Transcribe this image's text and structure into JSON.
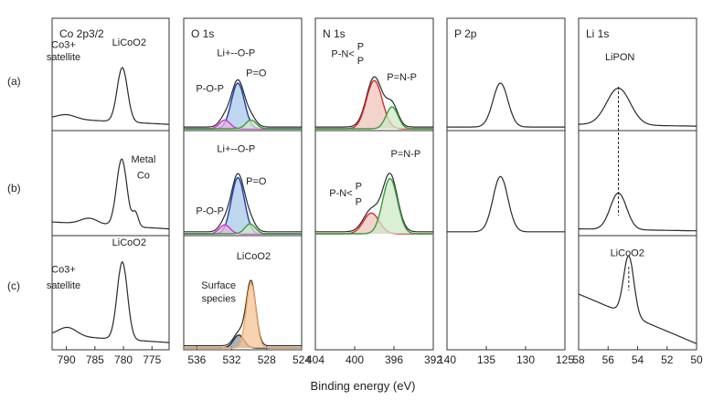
{
  "figure": {
    "xlabel": "Binding energy (eV)",
    "row_labels": [
      "(a)",
      "(b)",
      "(c)"
    ]
  },
  "colors": {
    "line": "#2a2a2a",
    "red": "#d92b2b",
    "green": "#3a9a3a",
    "blue": "#1f3aa8",
    "magenta": "#cc33cc",
    "orange": "#f0a860",
    "gray_fill": "#8a9aa8",
    "red_fill": "#f2c4bc",
    "green_fill": "#cfe8c8",
    "blue_fill": "#a8c8e8",
    "magenta_fill": "#e9b3e6",
    "orange_fill": "#f5c497"
  },
  "chart_data": [
    {
      "type": "line",
      "title": "Co 2p3/2",
      "xlim": [
        792.5,
        772
      ],
      "xticks": [
        790,
        785,
        780,
        775
      ],
      "panels": [
        {
          "row": "a",
          "curves": [
            {
              "name": "total",
              "peaks": [
                {
                  "center": 780.2,
                  "height": 0.62,
                  "width": 0.9
                },
                {
                  "center": 790.0,
                  "height": 0.05,
                  "width": 1.6
                }
              ],
              "baseline": [
                0.12,
                0.05
              ]
            }
          ],
          "annotations": [
            {
              "text": "LiCoO2",
              "x": 779,
              "y": 0.95
            },
            {
              "text": "Co3+",
              "x": 790.5,
              "y": 0.92
            },
            {
              "text": "satellite",
              "x": 790.5,
              "y": 0.78
            }
          ]
        },
        {
          "row": "b",
          "curves": [
            {
              "name": "total",
              "peaks": [
                {
                  "center": 780.3,
                  "height": 0.68,
                  "width": 0.9
                },
                {
                  "center": 777.9,
                  "height": 0.14,
                  "width": 0.5
                },
                {
                  "center": 786.0,
                  "height": 0.06,
                  "width": 1.5
                }
              ],
              "baseline": [
                0.12,
                0.05
              ]
            }
          ],
          "annotations": [
            {
              "text": "Metal",
              "x": 776.5,
              "y": 0.72
            },
            {
              "text": "Co",
              "x": 776.5,
              "y": 0.56
            }
          ]
        },
        {
          "row": "c",
          "curves": [
            {
              "name": "total",
              "peaks": [
                {
                  "center": 780.2,
                  "height": 0.72,
                  "width": 0.9
                },
                {
                  "center": 789.8,
                  "height": 0.08,
                  "width": 1.6
                }
              ],
              "baseline": [
                0.12,
                0.05
              ]
            }
          ],
          "annotations": [
            {
              "text": "LiCoO2",
              "x": 779,
              "y": 0.95
            },
            {
              "text": "Co3+",
              "x": 790.5,
              "y": 0.7
            },
            {
              "text": "satellite",
              "x": 790.5,
              "y": 0.55
            }
          ]
        }
      ]
    },
    {
      "type": "line",
      "title": "O 1s",
      "xlim": [
        537.5,
        524
      ],
      "xticks": [
        536,
        532,
        528,
        524
      ],
      "panels": [
        {
          "row": "a",
          "curves": [
            {
              "name": "total",
              "peaks": [
                {
                  "center": 531.3,
                  "height": 0.53,
                  "width": 0.75
                },
                {
                  "center": 532.8,
                  "height": 0.1,
                  "width": 0.6
                },
                {
                  "center": 529.8,
                  "height": 0.1,
                  "width": 0.6
                }
              ],
              "baseline": [
                0.02,
                0.02
              ]
            },
            {
              "name": "Li+--O-P",
              "color": "blue",
              "fill": "blue_fill",
              "peaks": [
                {
                  "center": 531.3,
                  "height": 0.52,
                  "width": 0.75
                }
              ]
            },
            {
              "name": "P-O-P",
              "color": "magenta",
              "fill": "magenta_fill",
              "peaks": [
                {
                  "center": 532.8,
                  "height": 0.1,
                  "width": 0.6
                }
              ]
            },
            {
              "name": "P=O",
              "color": "green",
              "fill": "green_fill",
              "peaks": [
                {
                  "center": 529.8,
                  "height": 0.1,
                  "width": 0.6
                }
              ]
            }
          ],
          "annotations": [
            {
              "text": "Li+--O-P",
              "x": 531.5,
              "y": 0.83
            },
            {
              "text": "P-O-P",
              "x": 534.5,
              "y": 0.42
            },
            {
              "text": "P=O",
              "x": 529.2,
              "y": 0.6
            }
          ]
        },
        {
          "row": "b",
          "curves": [
            {
              "name": "total",
              "peaks": [
                {
                  "center": 531.3,
                  "height": 0.58,
                  "width": 0.75
                },
                {
                  "center": 532.8,
                  "height": 0.09,
                  "width": 0.6
                },
                {
                  "center": 529.9,
                  "height": 0.1,
                  "width": 0.6
                }
              ],
              "baseline": [
                0.02,
                0.02
              ]
            },
            {
              "name": "Li+--O-P",
              "color": "blue",
              "fill": "blue_fill",
              "peaks": [
                {
                  "center": 531.3,
                  "height": 0.57,
                  "width": 0.75
                }
              ]
            },
            {
              "name": "P-O-P",
              "color": "magenta",
              "fill": "magenta_fill",
              "peaks": [
                {
                  "center": 532.8,
                  "height": 0.09,
                  "width": 0.6
                }
              ]
            },
            {
              "name": "P=O",
              "color": "green",
              "fill": "green_fill",
              "peaks": [
                {
                  "center": 529.9,
                  "height": 0.1,
                  "width": 0.6
                }
              ]
            }
          ],
          "annotations": [
            {
              "text": "Li+--O-P",
              "x": 531.5,
              "y": 0.83
            },
            {
              "text": "P-O-P",
              "x": 534.5,
              "y": 0.2
            },
            {
              "text": "P=O",
              "x": 529.2,
              "y": 0.5
            }
          ]
        },
        {
          "row": "c",
          "curves": [
            {
              "name": "total",
              "peaks": [
                {
                  "center": 529.8,
                  "height": 0.6,
                  "width": 0.55
                },
                {
                  "center": 531.2,
                  "height": 0.12,
                  "width": 0.6
                }
              ],
              "baseline": [
                0.02,
                0.02
              ]
            },
            {
              "name": "Surface species",
              "color": "line",
              "fill": "gray_fill",
              "peaks": [
                {
                  "center": 531.2,
                  "height": 0.12,
                  "width": 0.6
                }
              ]
            },
            {
              "name": "LiCoO2",
              "color": "orange",
              "fill": "orange_fill",
              "peaks": [
                {
                  "center": 529.8,
                  "height": 0.6,
                  "width": 0.55
                }
              ]
            }
          ],
          "annotations": [
            {
              "text": "LiCoO2",
              "x": 529.5,
              "y": 0.82
            },
            {
              "text": "Surface",
              "x": 533.5,
              "y": 0.55
            },
            {
              "text": "species",
              "x": 533.5,
              "y": 0.43
            }
          ]
        }
      ]
    },
    {
      "type": "line",
      "title": "N 1s",
      "xlim": [
        404,
        392
      ],
      "xticks": [
        404,
        400,
        396,
        392
      ],
      "panels": [
        {
          "row": "a",
          "curves": [
            {
              "name": "total",
              "peaks": [
                {
                  "center": 398.0,
                  "height": 0.57,
                  "width": 0.8
                },
                {
                  "center": 396.2,
                  "height": 0.25,
                  "width": 0.6
                }
              ],
              "baseline": [
                0.02,
                0.02
              ]
            },
            {
              "name": "P-N<P P",
              "color": "red",
              "fill": "red_fill",
              "peaks": [
                {
                  "center": 398.0,
                  "height": 0.55,
                  "width": 0.8
                }
              ]
            },
            {
              "name": "P=N-P",
              "color": "green",
              "fill": "green_fill",
              "peaks": [
                {
                  "center": 396.2,
                  "height": 0.25,
                  "width": 0.6
                }
              ]
            }
          ],
          "annotations": [
            {
              "text": "P-N<",
              "x": 401.2,
              "y": 0.82
            },
            {
              "text": "P",
              "x": 399.4,
              "y": 0.9
            },
            {
              "text": "P",
              "x": 399.4,
              "y": 0.74
            },
            {
              "text": "P=N-P",
              "x": 395.2,
              "y": 0.55
            }
          ]
        },
        {
          "row": "b",
          "curves": [
            {
              "name": "total",
              "peaks": [
                {
                  "center": 396.4,
                  "height": 0.58,
                  "width": 0.75
                },
                {
                  "center": 398.3,
                  "height": 0.22,
                  "width": 0.8
                }
              ],
              "baseline": [
                0.02,
                0.02
              ]
            },
            {
              "name": "P-N<P P",
              "color": "red",
              "fill": "red_fill",
              "peaks": [
                {
                  "center": 398.3,
                  "height": 0.21,
                  "width": 0.8
                }
              ]
            },
            {
              "name": "P=N-P",
              "color": "green",
              "fill": "green_fill",
              "peaks": [
                {
                  "center": 396.4,
                  "height": 0.56,
                  "width": 0.75
                }
              ]
            }
          ],
          "annotations": [
            {
              "text": "P=N-P",
              "x": 394.8,
              "y": 0.78
            },
            {
              "text": "P-N<",
              "x": 401.4,
              "y": 0.38
            },
            {
              "text": "P",
              "x": 399.6,
              "y": 0.45
            },
            {
              "text": "P",
              "x": 399.6,
              "y": 0.29
            }
          ]
        }
      ]
    },
    {
      "type": "line",
      "title": "P 2p",
      "xlim": [
        140,
        125
      ],
      "xticks": [
        140,
        135,
        130,
        125
      ],
      "panels": [
        {
          "row": "a",
          "curves": [
            {
              "name": "total",
              "peaks": [
                {
                  "center": 133.2,
                  "height": 0.5,
                  "width": 0.95
                }
              ],
              "baseline": [
                0.02,
                0.02
              ]
            }
          ],
          "annotations": []
        },
        {
          "row": "b",
          "curves": [
            {
              "name": "total",
              "peaks": [
                {
                  "center": 133.2,
                  "height": 0.56,
                  "width": 0.95
                }
              ],
              "baseline": [
                0.02,
                0.02
              ]
            }
          ],
          "annotations": []
        }
      ]
    },
    {
      "type": "line",
      "title": "Li 1s",
      "xlim": [
        58,
        50
      ],
      "xticks": [
        58,
        56,
        54,
        52,
        50
      ],
      "panels": [
        {
          "row": "a",
          "curves": [
            {
              "name": "total",
              "peaks": [
                {
                  "center": 55.3,
                  "height": 0.42,
                  "width": 0.8
                }
              ],
              "baseline": [
                0.05,
                0.03
              ]
            }
          ],
          "annotations": [
            {
              "text": "LiPON",
              "x": 55.2,
              "y": 0.78
            }
          ]
        },
        {
          "row": "b",
          "curves": [
            {
              "name": "total",
              "peaks": [
                {
                  "center": 55.3,
                  "height": 0.37,
                  "width": 0.55
                }
              ],
              "baseline": [
                0.05,
                0.03
              ]
            }
          ],
          "annotations": []
        },
        {
          "row": "c",
          "curves": [
            {
              "name": "total",
              "peaks": [
                {
                  "center": 54.6,
                  "height": 0.55,
                  "width": 0.35
                }
              ],
              "baseline": [
                0.5,
                0.04
              ]
            }
          ],
          "annotations": [
            {
              "text": "LiCoO2",
              "x": 54.7,
              "y": 0.85
            }
          ]
        }
      ]
    }
  ]
}
